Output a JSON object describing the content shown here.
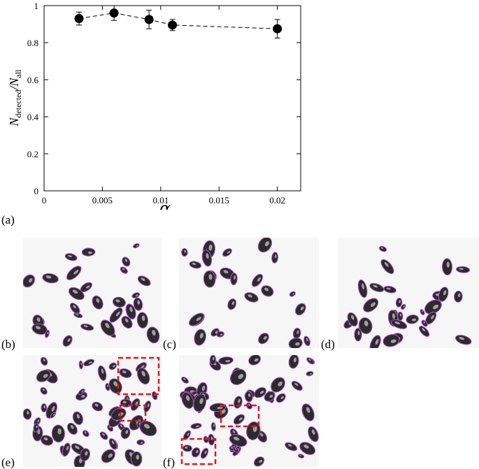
{
  "figure": {
    "panel_labels": [
      "(a)",
      "(b)",
      "(c)",
      "(d)",
      "(e)",
      "(f)"
    ],
    "highlight_color": "#e0191f",
    "outline_color": "#b44fd1"
  },
  "chart_data": {
    "type": "scatter",
    "title": "",
    "xlabel": "α",
    "ylabel_main": "N",
    "ylabel_sub1": "detected",
    "ylabel_slash": "/N",
    "ylabel_sub2": "all",
    "xlim": [
      0,
      0.022
    ],
    "ylim": [
      0,
      1
    ],
    "xticks": [
      0,
      0.005,
      0.01,
      0.015,
      0.02
    ],
    "xtick_labels": [
      "0",
      "0.005",
      "0.01",
      "0.015",
      "0.02"
    ],
    "yticks": [
      0,
      0.2,
      0.4,
      0.6,
      0.8,
      1
    ],
    "ytick_labels": [
      "0",
      "0.2",
      "0.4",
      "0.6",
      "0.8",
      "1"
    ],
    "grid": false,
    "marker_color": "#000000",
    "line_style": "dashed",
    "series": [
      {
        "x": [
          0.003,
          0.006,
          0.009,
          0.011,
          0.02
        ],
        "y": [
          0.93,
          0.96,
          0.925,
          0.895,
          0.875
        ],
        "err": [
          0.035,
          0.04,
          0.05,
          0.03,
          0.05
        ]
      }
    ]
  }
}
